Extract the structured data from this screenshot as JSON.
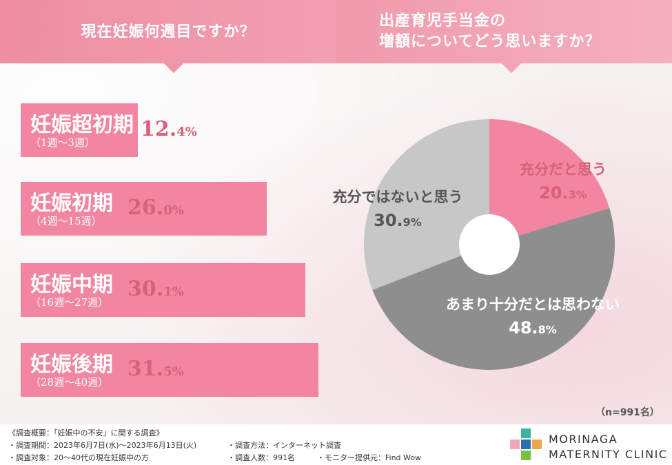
{
  "left_question": "現在妊娠何週目ですか？",
  "right_question": [
    "出産育児手当金の",
    "増額についてどう思いますか？"
  ],
  "chart_data": [
    {
      "type": "bar",
      "title": "現在妊娠何週目ですか？",
      "categories": [
        "妊娠超初期",
        "妊娠初期",
        "妊娠中期",
        "妊娠後期"
      ],
      "ranges": [
        "（1週～3週）",
        "（4週～15週）",
        "（16週～27週）",
        "（28週～40週）"
      ],
      "values": [
        12.4,
        26.0,
        30.1,
        31.5
      ],
      "value_labels": [
        [
          "12.",
          "4%"
        ],
        [
          "26.",
          "0%"
        ],
        [
          "30.",
          "1%"
        ],
        [
          "31.",
          "5%"
        ]
      ],
      "bar_color": "#f285a0"
    },
    {
      "type": "pie",
      "title": "出産育児手当金の増額についてどう思いますか？",
      "categories": [
        "充分だと思う",
        "あまり十分だとは思わない",
        "充分ではないと思う"
      ],
      "values": [
        20.3,
        48.8,
        30.9
      ],
      "value_labels": [
        [
          "20.",
          "3%"
        ],
        [
          "48.",
          "8%"
        ],
        [
          "30.",
          "9%"
        ]
      ],
      "colors": [
        "#f285a0",
        "#8e8e8e",
        "#c7c7c7"
      ],
      "label_colors": [
        "#d8607a",
        "#ffffff",
        "#555555"
      ]
    }
  ],
  "sample_size": "（n=991名）",
  "footer": {
    "summary": "《調査概要：「妊娠中の不安」に関する調査》",
    "period": "・調査期間：2023年6月7日(水)～2023年6月13日(火)",
    "target": "・調査対象：20～40代の現在妊娠中の方",
    "method": "・調査方法：インターネット調査",
    "count": "・調査人数：991名",
    "provider": "・モニター提供元：Find Wow"
  },
  "brand": {
    "line1": "MORINAGA",
    "line2": "MATERNITY CLINIC"
  },
  "logo_colors": [
    "#3bb3a0",
    "#f2a7b8",
    "#2a6fb5",
    "#f2a54a",
    "#7ac143"
  ]
}
